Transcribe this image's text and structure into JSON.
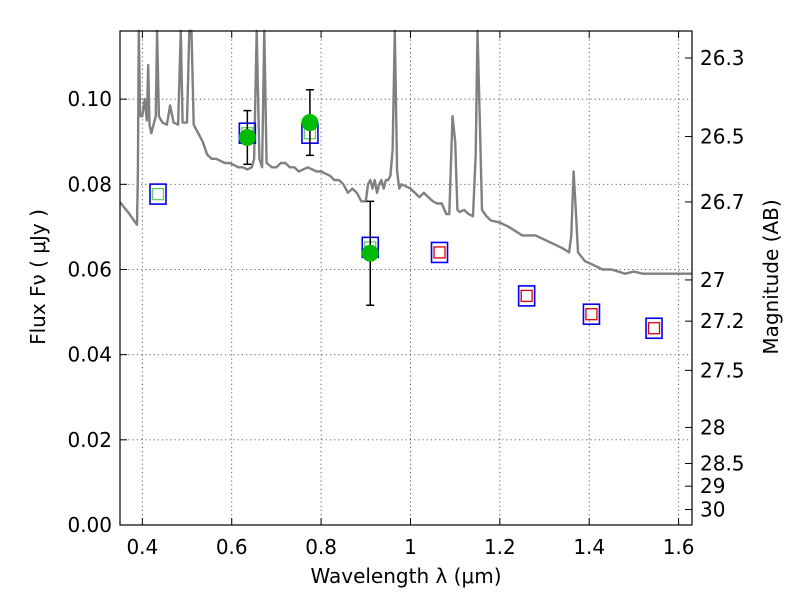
{
  "chart_data": {
    "type": "scatter",
    "xlabel": "Wavelength  λ (μm)",
    "ylabel": "Flux  Fν  ( μJy )",
    "y2label": "Magnitude (AB)",
    "xlim": [
      0.35,
      1.63
    ],
    "ylim": [
      0.0,
      0.116
    ],
    "grid": true,
    "x_ticks": [
      0.4,
      0.6,
      0.8,
      1.0,
      1.2,
      1.4,
      1.6
    ],
    "x_tick_labels": [
      "0.4",
      "0.6",
      "0.8",
      "1",
      "1.2",
      "1.4",
      "1.6"
    ],
    "y_ticks": [
      0.0,
      0.02,
      0.04,
      0.06,
      0.08,
      0.1
    ],
    "y_tick_labels": [
      "0.00",
      "0.02",
      "0.04",
      "0.06",
      "0.08",
      "0.10"
    ],
    "y2_ticks": [
      {
        "label": "26.3",
        "mag": 26.3
      },
      {
        "label": "26.5",
        "mag": 26.5
      },
      {
        "label": "26.7",
        "mag": 26.7
      },
      {
        "label": "27",
        "mag": 27.0
      },
      {
        "label": "27.2",
        "mag": 27.2
      },
      {
        "label": "27.5",
        "mag": 27.5
      },
      {
        "label": "28",
        "mag": 28.0
      },
      {
        "label": "28.5",
        "mag": 28.5
      },
      {
        "label": "29",
        "mag": 29.0
      },
      {
        "label": "30",
        "mag": 30.0
      }
    ],
    "colors": {
      "model": "#808080",
      "observed": "#00bb00",
      "error_bar": "#000000",
      "model_box": "#0000ee",
      "box_fill_observed": "#66cc66",
      "box_fill_predicted": "#dd0000"
    },
    "series": [
      {
        "type": "line",
        "points": [
          [
            0.35,
            0.0758
          ],
          [
            0.36,
            0.0745
          ],
          [
            0.37,
            0.0732
          ],
          [
            0.38,
            0.0717
          ],
          [
            0.388,
            0.0705
          ],
          [
            0.39,
            0.083
          ],
          [
            0.392,
            0.116
          ],
          [
            0.395,
            0.096
          ],
          [
            0.4,
            0.096
          ],
          [
            0.405,
            0.1
          ],
          [
            0.41,
            0.095
          ],
          [
            0.413,
            0.108
          ],
          [
            0.416,
            0.094
          ],
          [
            0.42,
            0.092
          ],
          [
            0.43,
            0.096
          ],
          [
            0.433,
            0.116
          ],
          [
            0.437,
            0.096
          ],
          [
            0.445,
            0.0945
          ],
          [
            0.455,
            0.094
          ],
          [
            0.462,
            0.0985
          ],
          [
            0.47,
            0.0945
          ],
          [
            0.48,
            0.094
          ],
          [
            0.486,
            0.116
          ],
          [
            0.49,
            0.0945
          ],
          [
            0.5,
            0.0945
          ],
          [
            0.505,
            0.116
          ],
          [
            0.51,
            0.116
          ],
          [
            0.515,
            0.094
          ],
          [
            0.525,
            0.092
          ],
          [
            0.535,
            0.09
          ],
          [
            0.545,
            0.087
          ],
          [
            0.555,
            0.086
          ],
          [
            0.565,
            0.086
          ],
          [
            0.575,
            0.0855
          ],
          [
            0.585,
            0.085
          ],
          [
            0.595,
            0.085
          ],
          [
            0.605,
            0.0845
          ],
          [
            0.615,
            0.084
          ],
          [
            0.625,
            0.084
          ],
          [
            0.635,
            0.0835
          ],
          [
            0.645,
            0.084
          ],
          [
            0.65,
            0.086
          ],
          [
            0.656,
            0.116
          ],
          [
            0.662,
            0.086
          ],
          [
            0.668,
            0.084
          ],
          [
            0.673,
            0.116
          ],
          [
            0.678,
            0.085
          ],
          [
            0.69,
            0.084
          ],
          [
            0.7,
            0.084
          ],
          [
            0.71,
            0.085
          ],
          [
            0.72,
            0.085
          ],
          [
            0.73,
            0.084
          ],
          [
            0.74,
            0.084
          ],
          [
            0.75,
            0.083
          ],
          [
            0.76,
            0.0835
          ],
          [
            0.77,
            0.084
          ],
          [
            0.78,
            0.0835
          ],
          [
            0.79,
            0.083
          ],
          [
            0.8,
            0.083
          ],
          [
            0.81,
            0.0825
          ],
          [
            0.82,
            0.082
          ],
          [
            0.83,
            0.081
          ],
          [
            0.84,
            0.081
          ],
          [
            0.85,
            0.08
          ],
          [
            0.86,
            0.078
          ],
          [
            0.87,
            0.079
          ],
          [
            0.88,
            0.078
          ],
          [
            0.89,
            0.076
          ],
          [
            0.9,
            0.076
          ],
          [
            0.905,
            0.08
          ],
          [
            0.91,
            0.081
          ],
          [
            0.915,
            0.079
          ],
          [
            0.92,
            0.081
          ],
          [
            0.925,
            0.078
          ],
          [
            0.93,
            0.08
          ],
          [
            0.935,
            0.081
          ],
          [
            0.94,
            0.079
          ],
          [
            0.945,
            0.081
          ],
          [
            0.95,
            0.081
          ],
          [
            0.955,
            0.082
          ],
          [
            0.96,
            0.088
          ],
          [
            0.965,
            0.116
          ],
          [
            0.97,
            0.083
          ],
          [
            0.975,
            0.079
          ],
          [
            0.98,
            0.08
          ],
          [
            0.99,
            0.0795
          ],
          [
            1.0,
            0.079
          ],
          [
            1.01,
            0.078
          ],
          [
            1.02,
            0.077
          ],
          [
            1.03,
            0.078
          ],
          [
            1.04,
            0.077
          ],
          [
            1.05,
            0.076
          ],
          [
            1.06,
            0.0755
          ],
          [
            1.07,
            0.0755
          ],
          [
            1.08,
            0.073
          ],
          [
            1.087,
            0.073
          ],
          [
            1.094,
            0.096
          ],
          [
            1.1,
            0.09
          ],
          [
            1.105,
            0.074
          ],
          [
            1.11,
            0.0735
          ],
          [
            1.12,
            0.074
          ],
          [
            1.13,
            0.073
          ],
          [
            1.14,
            0.0725
          ],
          [
            1.146,
            0.087
          ],
          [
            1.15,
            0.116
          ],
          [
            1.155,
            0.096
          ],
          [
            1.16,
            0.074
          ],
          [
            1.17,
            0.0725
          ],
          [
            1.18,
            0.0715
          ],
          [
            1.2,
            0.071
          ],
          [
            1.22,
            0.07
          ],
          [
            1.25,
            0.068
          ],
          [
            1.28,
            0.068
          ],
          [
            1.3,
            0.067
          ],
          [
            1.32,
            0.066
          ],
          [
            1.34,
            0.065
          ],
          [
            1.355,
            0.064
          ],
          [
            1.36,
            0.068
          ],
          [
            1.365,
            0.083
          ],
          [
            1.37,
            0.074
          ],
          [
            1.375,
            0.064
          ],
          [
            1.39,
            0.062
          ],
          [
            1.41,
            0.061
          ],
          [
            1.43,
            0.06
          ],
          [
            1.45,
            0.06
          ],
          [
            1.48,
            0.059
          ],
          [
            1.5,
            0.0595
          ],
          [
            1.52,
            0.059
          ],
          [
            1.55,
            0.059
          ],
          [
            1.58,
            0.059
          ],
          [
            1.6,
            0.059
          ],
          [
            1.63,
            0.059
          ]
        ]
      },
      {
        "type": "scatter",
        "marker": "square",
        "fill": "observed",
        "points": [
          [
            0.435,
            0.0777
          ],
          [
            0.635,
            0.092
          ],
          [
            0.775,
            0.092
          ],
          [
            0.91,
            0.0652
          ]
        ]
      },
      {
        "type": "scatter",
        "marker": "square",
        "fill": "predicted",
        "points": [
          [
            1.065,
            0.064
          ],
          [
            1.26,
            0.0538
          ],
          [
            1.405,
            0.0495
          ],
          [
            1.545,
            0.0462
          ]
        ]
      },
      {
        "type": "scatter",
        "marker": "circle",
        "error_bars": true,
        "points": [
          {
            "x": 0.635,
            "y": 0.091,
            "yerr": 0.0063
          },
          {
            "x": 0.775,
            "y": 0.0945,
            "yerr": 0.0077
          },
          {
            "x": 0.91,
            "y": 0.0638,
            "yerr": 0.0122
          }
        ]
      }
    ]
  }
}
